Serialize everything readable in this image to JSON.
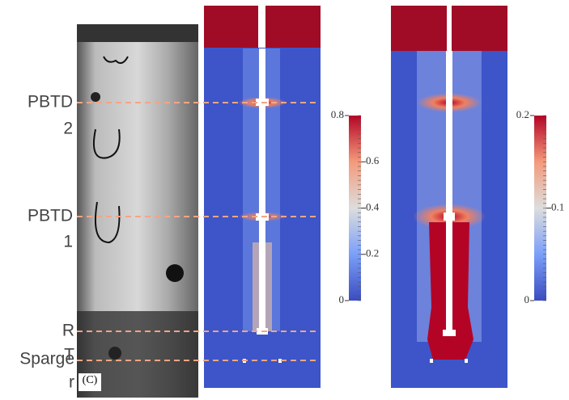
{
  "labels": [
    [
      "PBTD",
      "2"
    ],
    [
      "PBTD",
      "1"
    ],
    [
      "R",
      "T"
    ],
    [
      "Sparge",
      "r"
    ]
  ],
  "photo_label": "(C)",
  "colorbars": [
    {
      "lim": [
        0,
        0.8
      ],
      "ticks": [
        0,
        0.2,
        0.4,
        0.6,
        0.8
      ]
    },
    {
      "lim": [
        0,
        0.2
      ],
      "ticks": [
        0,
        0.1,
        0.2
      ]
    }
  ]
}
